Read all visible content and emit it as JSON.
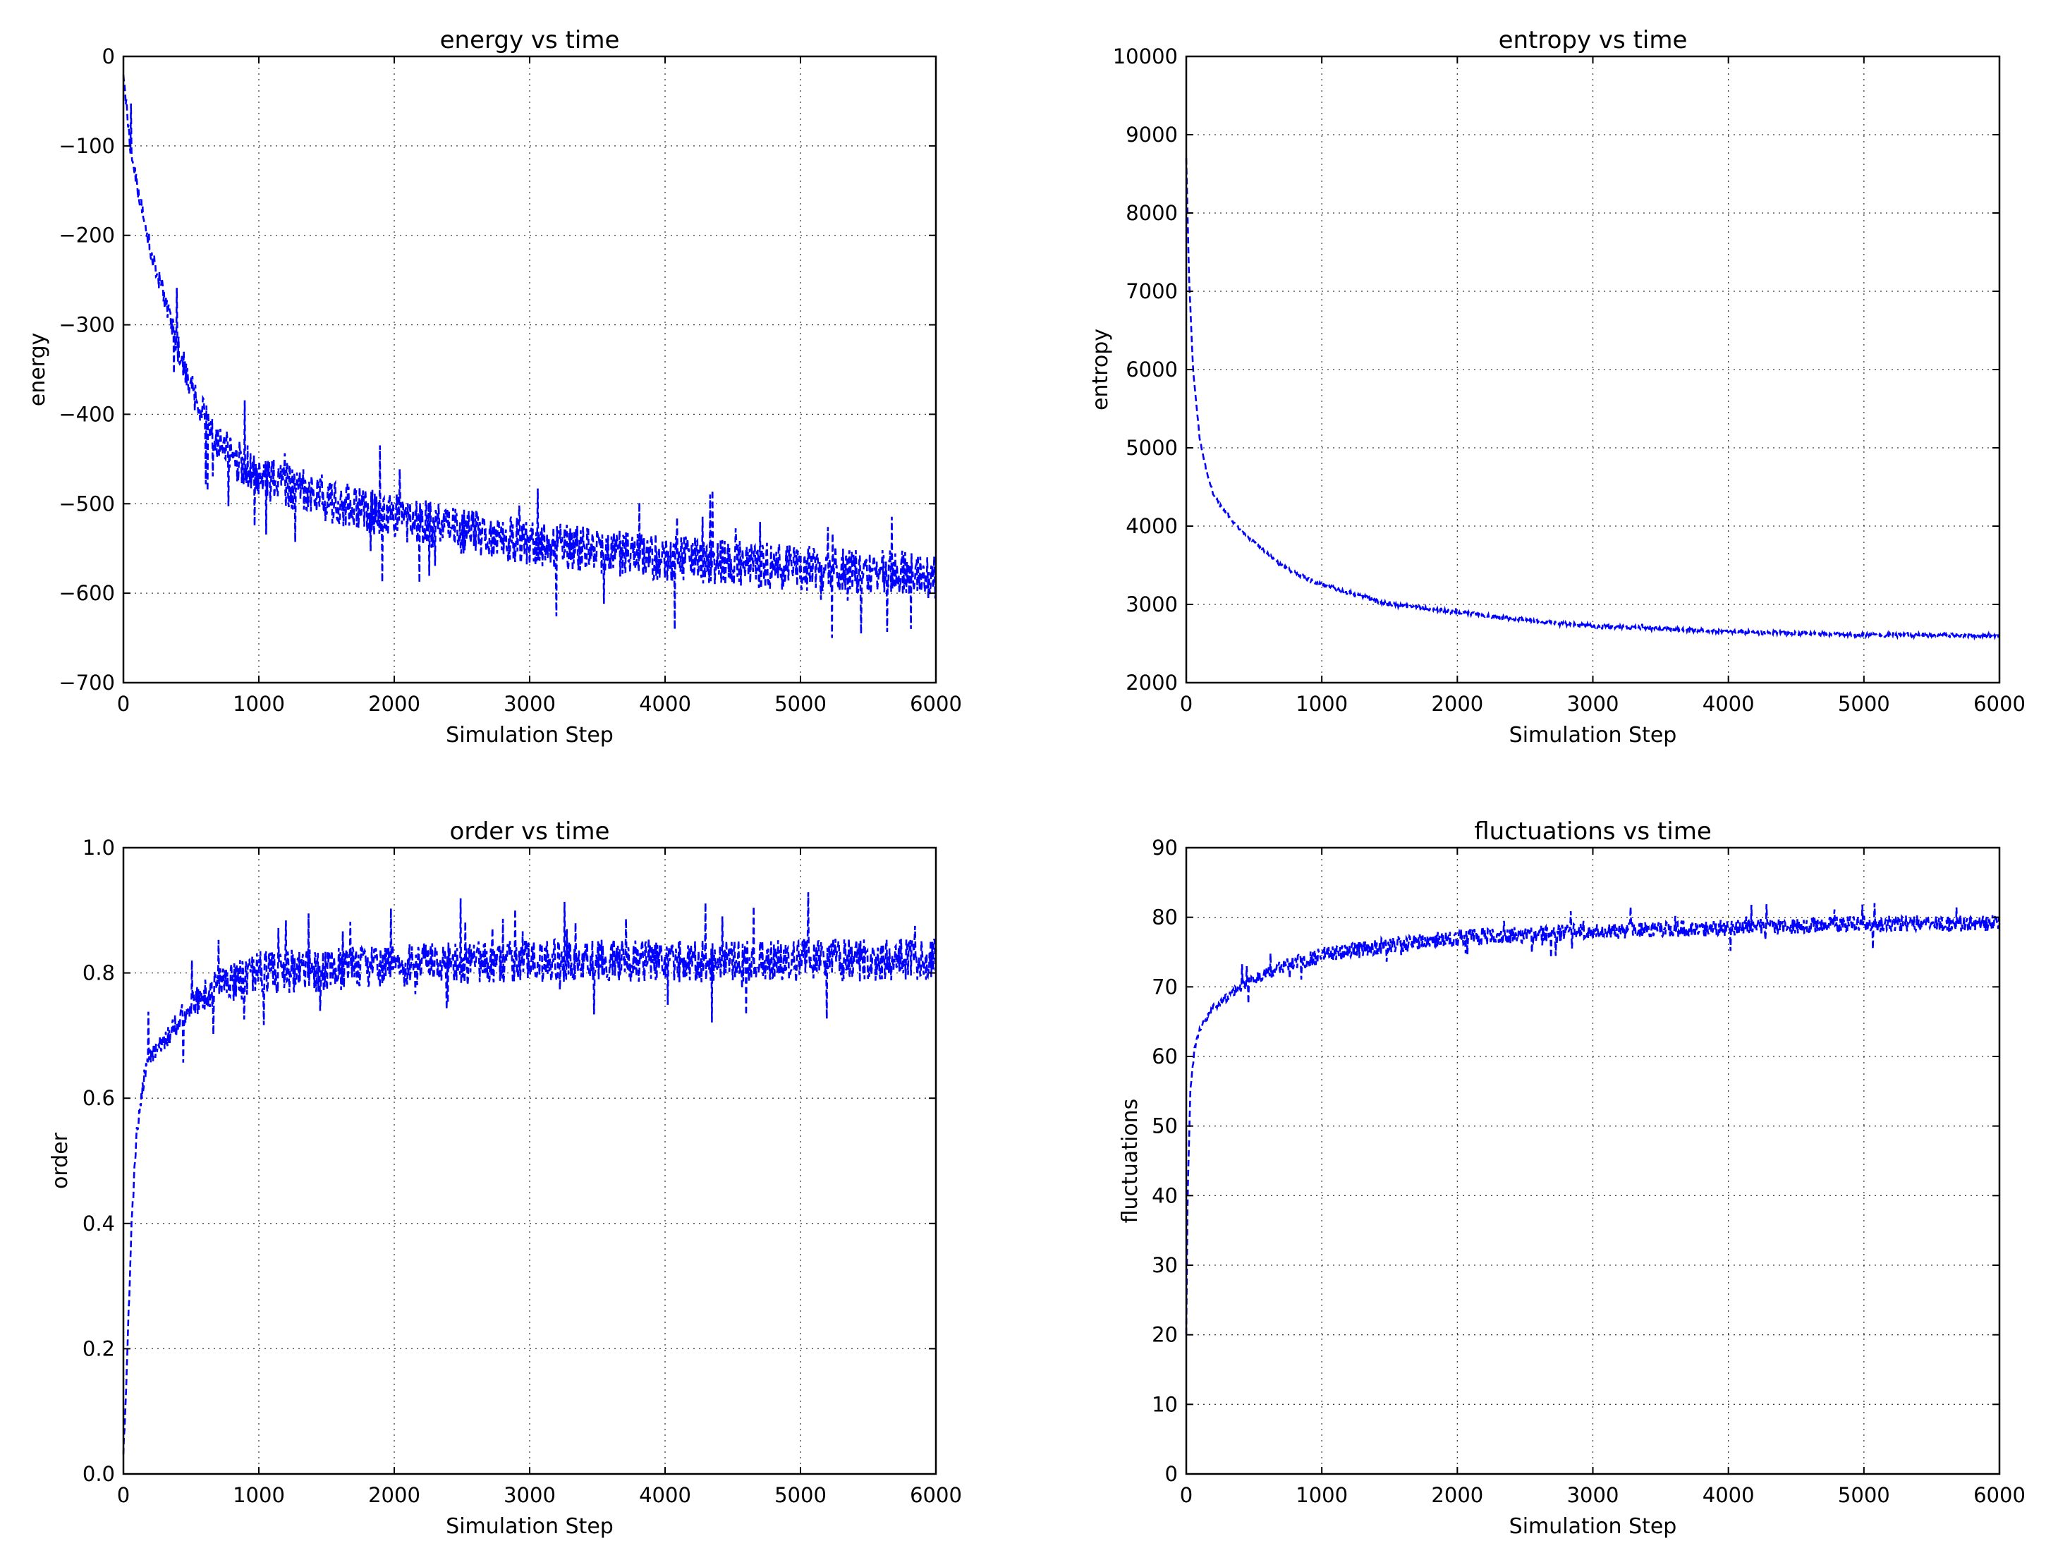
{
  "chart_data": [
    {
      "type": "line",
      "title": "energy vs time",
      "xlabel": "Simulation Step",
      "ylabel": "energy",
      "xlim": [
        0,
        6000
      ],
      "ylim": [
        -700,
        0
      ],
      "xticks": [
        0,
        1000,
        2000,
        3000,
        4000,
        5000,
        6000
      ],
      "yticks": [
        -700,
        -600,
        -500,
        -400,
        -300,
        -200,
        -100,
        0
      ],
      "xtick_labels": [
        "0",
        "1000",
        "2000",
        "3000",
        "4000",
        "5000",
        "6000"
      ],
      "ytick_labels": [
        "−700",
        "−600",
        "−500",
        "−400",
        "−300",
        "−200",
        "−100",
        "0"
      ],
      "grid": true,
      "color": "#0000ff",
      "linestyle": "dashed",
      "noise": 26,
      "series": [
        {
          "name": "energy",
          "x": [
            0,
            50,
            100,
            200,
            300,
            400,
            500,
            600,
            700,
            800,
            1000,
            1250,
            1500,
            2000,
            2500,
            3000,
            3500,
            4000,
            4500,
            5000,
            5500,
            6000
          ],
          "values": [
            -20,
            -100,
            -145,
            -215,
            -270,
            -325,
            -370,
            -405,
            -430,
            -448,
            -468,
            -482,
            -495,
            -515,
            -530,
            -543,
            -553,
            -560,
            -566,
            -572,
            -576,
            -580
          ]
        }
      ]
    },
    {
      "type": "line",
      "title": "entropy vs time",
      "xlabel": "Simulation Step",
      "ylabel": "entropy",
      "xlim": [
        0,
        6000
      ],
      "ylim": [
        2000,
        10000
      ],
      "xticks": [
        0,
        1000,
        2000,
        3000,
        4000,
        5000,
        6000
      ],
      "yticks": [
        2000,
        3000,
        4000,
        5000,
        6000,
        7000,
        8000,
        9000,
        10000
      ],
      "xtick_labels": [
        "0",
        "1000",
        "2000",
        "3000",
        "4000",
        "5000",
        "6000"
      ],
      "ytick_labels": [
        "2000",
        "3000",
        "4000",
        "5000",
        "6000",
        "7000",
        "8000",
        "9000",
        "10000"
      ],
      "grid": true,
      "color": "#0000ff",
      "linestyle": "dashed",
      "noise": 25,
      "series": [
        {
          "name": "entropy",
          "x": [
            0,
            20,
            50,
            100,
            150,
            200,
            300,
            400,
            500,
            600,
            700,
            800,
            1000,
            1500,
            2000,
            2500,
            3000,
            3500,
            4000,
            5000,
            6000
          ],
          "values": [
            8700,
            7200,
            6000,
            5100,
            4700,
            4400,
            4150,
            3950,
            3800,
            3650,
            3500,
            3400,
            3250,
            3000,
            2900,
            2800,
            2720,
            2690,
            2650,
            2610,
            2600
          ]
        }
      ]
    },
    {
      "type": "line",
      "title": "order vs time",
      "xlabel": "Simulation Step",
      "ylabel": "order",
      "xlim": [
        0,
        6000
      ],
      "ylim": [
        0,
        1
      ],
      "xticks": [
        0,
        1000,
        2000,
        3000,
        4000,
        5000,
        6000
      ],
      "yticks": [
        0,
        0.2,
        0.4,
        0.6,
        0.8,
        1.0
      ],
      "xtick_labels": [
        "0",
        "1000",
        "2000",
        "3000",
        "4000",
        "5000",
        "6000"
      ],
      "ytick_labels": [
        "0.0",
        "0.2",
        "0.4",
        "0.6",
        "0.8",
        "1.0"
      ],
      "grid": true,
      "color": "#0000ff",
      "linestyle": "dashed",
      "noise": 0.035,
      "series": [
        {
          "name": "order",
          "x": [
            0,
            30,
            60,
            100,
            150,
            200,
            300,
            400,
            500,
            700,
            1000,
            1500,
            2000,
            3000,
            4000,
            5000,
            6000
          ],
          "values": [
            0.03,
            0.2,
            0.4,
            0.55,
            0.63,
            0.67,
            0.69,
            0.72,
            0.75,
            0.78,
            0.8,
            0.805,
            0.81,
            0.82,
            0.82,
            0.82,
            0.82
          ]
        }
      ]
    },
    {
      "type": "line",
      "title": "fluctuations vs time",
      "xlabel": "Simulation Step",
      "ylabel": "fluctuations",
      "xlim": [
        0,
        6000
      ],
      "ylim": [
        0,
        90
      ],
      "xticks": [
        0,
        1000,
        2000,
        3000,
        4000,
        5000,
        6000
      ],
      "yticks": [
        0,
        10,
        20,
        30,
        40,
        50,
        60,
        70,
        80,
        90
      ],
      "xtick_labels": [
        "0",
        "1000",
        "2000",
        "3000",
        "4000",
        "5000",
        "6000"
      ],
      "ytick_labels": [
        "0",
        "10",
        "20",
        "30",
        "40",
        "50",
        "60",
        "70",
        "80",
        "90"
      ],
      "grid": true,
      "color": "#0000ff",
      "linestyle": "dashed",
      "noise": 1.2,
      "series": [
        {
          "name": "fluctuations",
          "x": [
            0,
            10,
            30,
            60,
            100,
            200,
            400,
            600,
            800,
            1000,
            1500,
            2000,
            2500,
            3000,
            4000,
            5000,
            6000
          ],
          "values": [
            20,
            40,
            55,
            61,
            64,
            67,
            70,
            72,
            73.5,
            74.5,
            76,
            77,
            77.5,
            78,
            78.5,
            79,
            79.2
          ]
        }
      ]
    }
  ]
}
